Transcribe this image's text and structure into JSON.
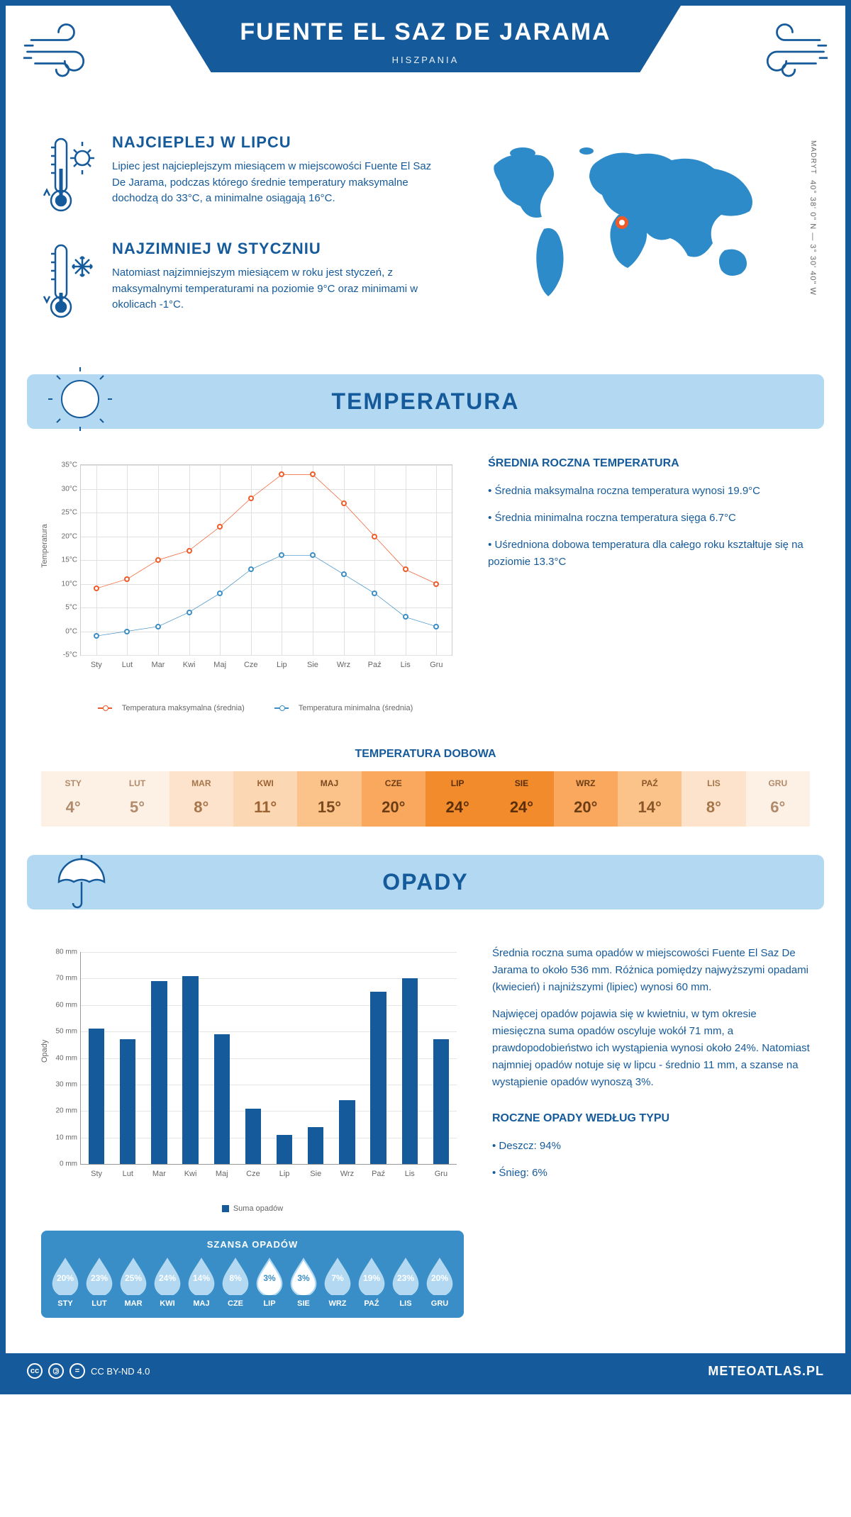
{
  "header": {
    "title": "FUENTE EL SAZ DE JARAMA",
    "country": "HISZPANIA"
  },
  "coords": {
    "label": "MADRYT",
    "value": "40° 38' 0\" N — 3° 30' 40\" W"
  },
  "map_marker": {
    "left_pct": 43,
    "top_pct": 39
  },
  "intro": {
    "hot": {
      "title": "NAJCIEPLEJ W LIPCU",
      "text": "Lipiec jest najcieplejszym miesiącem w miejscowości Fuente El Saz De Jarama, podczas którego średnie temperatury maksymalne dochodzą do 33°C, a minimalne osiągają 16°C."
    },
    "cold": {
      "title": "NAJZIMNIEJ W STYCZNIU",
      "text": "Natomiast najzimniejszym miesiącem w roku jest styczeń, z maksymalnymi temperaturami na poziomie 9°C oraz minimami w okolicach -1°C."
    }
  },
  "sections": {
    "temp": "TEMPERATURA",
    "precip": "OPADY"
  },
  "temp_chart": {
    "type": "line",
    "ylabel": "Temperatura",
    "ylim": [
      -5,
      35
    ],
    "ystep": 5,
    "ysuffix": "°C",
    "months": [
      "Sty",
      "Lut",
      "Mar",
      "Kwi",
      "Maj",
      "Cze",
      "Lip",
      "Sie",
      "Wrz",
      "Paź",
      "Lis",
      "Gru"
    ],
    "series": [
      {
        "name": "Temperatura maksymalna (średnia)",
        "color": "#f05a28",
        "values": [
          9,
          11,
          15,
          17,
          22,
          28,
          33,
          33,
          27,
          20,
          13,
          10
        ]
      },
      {
        "name": "Temperatura minimalna (średnia)",
        "color": "#3a8ec7",
        "values": [
          -1,
          0,
          1,
          4,
          8,
          13,
          16,
          16,
          12,
          8,
          3,
          1
        ]
      }
    ],
    "grid_color": "#e0e0e0",
    "line_width": 2,
    "marker_radius": 4
  },
  "temp_side": {
    "heading": "ŚREDNIA ROCZNA TEMPERATURA",
    "bullets": [
      "• Średnia maksymalna roczna temperatura wynosi 19.9°C",
      "• Średnia minimalna roczna temperatura sięga 6.7°C",
      "• Uśredniona dobowa temperatura dla całego roku kształtuje się na poziomie 13.3°C"
    ]
  },
  "daily_temp": {
    "heading": "TEMPERATURA DOBOWA",
    "months": [
      "STY",
      "LUT",
      "MAR",
      "KWI",
      "MAJ",
      "CZE",
      "LIP",
      "SIE",
      "WRZ",
      "PAŹ",
      "LIS",
      "GRU"
    ],
    "values": [
      "4°",
      "5°",
      "8°",
      "11°",
      "15°",
      "20°",
      "24°",
      "24°",
      "20°",
      "14°",
      "8°",
      "6°"
    ],
    "bg_colors": [
      "#fdf1e6",
      "#fdf1e6",
      "#fde3cc",
      "#fcd7b3",
      "#fbc28a",
      "#f9a85e",
      "#f28b2b",
      "#f28b2b",
      "#f9a85e",
      "#fbc28a",
      "#fde3cc",
      "#fdf1e6"
    ],
    "text_colors": [
      "#b08a6a",
      "#b08a6a",
      "#a6764a",
      "#9c6332",
      "#7a4a1e",
      "#6b3d14",
      "#5a2e08",
      "#5a2e08",
      "#6b3d14",
      "#8a5728",
      "#a6764a",
      "#b08a6a"
    ]
  },
  "precip_chart": {
    "type": "bar",
    "ylabel": "Opady",
    "ylim": [
      0,
      80
    ],
    "ystep": 10,
    "ysuffix": " mm",
    "months": [
      "Sty",
      "Lut",
      "Mar",
      "Kwi",
      "Maj",
      "Cze",
      "Lip",
      "Sie",
      "Wrz",
      "Paź",
      "Lis",
      "Gru"
    ],
    "values": [
      51,
      47,
      69,
      71,
      49,
      21,
      11,
      14,
      24,
      65,
      70,
      47
    ],
    "bar_color": "#155a9a",
    "bar_width_pct": 4.2,
    "legend": "Suma opadów"
  },
  "precip_side": {
    "p1": "Średnia roczna suma opadów w miejscowości Fuente El Saz De Jarama to około 536 mm. Różnica pomiędzy najwyższymi opadami (kwiecień) i najniższymi (lipiec) wynosi 60 mm.",
    "p2": "Najwięcej opadów pojawia się w kwietniu, w tym okresie miesięczna suma opadów oscyluje wokół 71 mm, a prawdopodobieństwo ich wystąpienia wynosi około 24%. Natomiast najmniej opadów notuje się w lipcu - średnio 11 mm, a szanse na wystąpienie opadów wynoszą 3%.",
    "type_heading": "ROCZNE OPADY WEDŁUG TYPU",
    "types": [
      "• Deszcz: 94%",
      "• Śnieg: 6%"
    ]
  },
  "rain_chance": {
    "heading": "SZANSA OPADÓW",
    "months": [
      "STY",
      "LUT",
      "MAR",
      "KWI",
      "MAJ",
      "CZE",
      "LIP",
      "SIE",
      "WRZ",
      "PAŹ",
      "LIS",
      "GRU"
    ],
    "pct": [
      20,
      23,
      25,
      24,
      14,
      8,
      3,
      3,
      7,
      19,
      23,
      20
    ],
    "full_fill": "#b3d9f2",
    "empty_fill": "#ffffff",
    "stroke": "#b3d9f2",
    "month_color": "#ffffff"
  },
  "footer": {
    "license": "CC BY-ND 4.0",
    "site": "METEOATLAS.PL"
  },
  "colors": {
    "primary": "#155a9a",
    "light_blue": "#b3d9f2",
    "mid_blue": "#3a8ec7",
    "orange": "#f05a28"
  }
}
